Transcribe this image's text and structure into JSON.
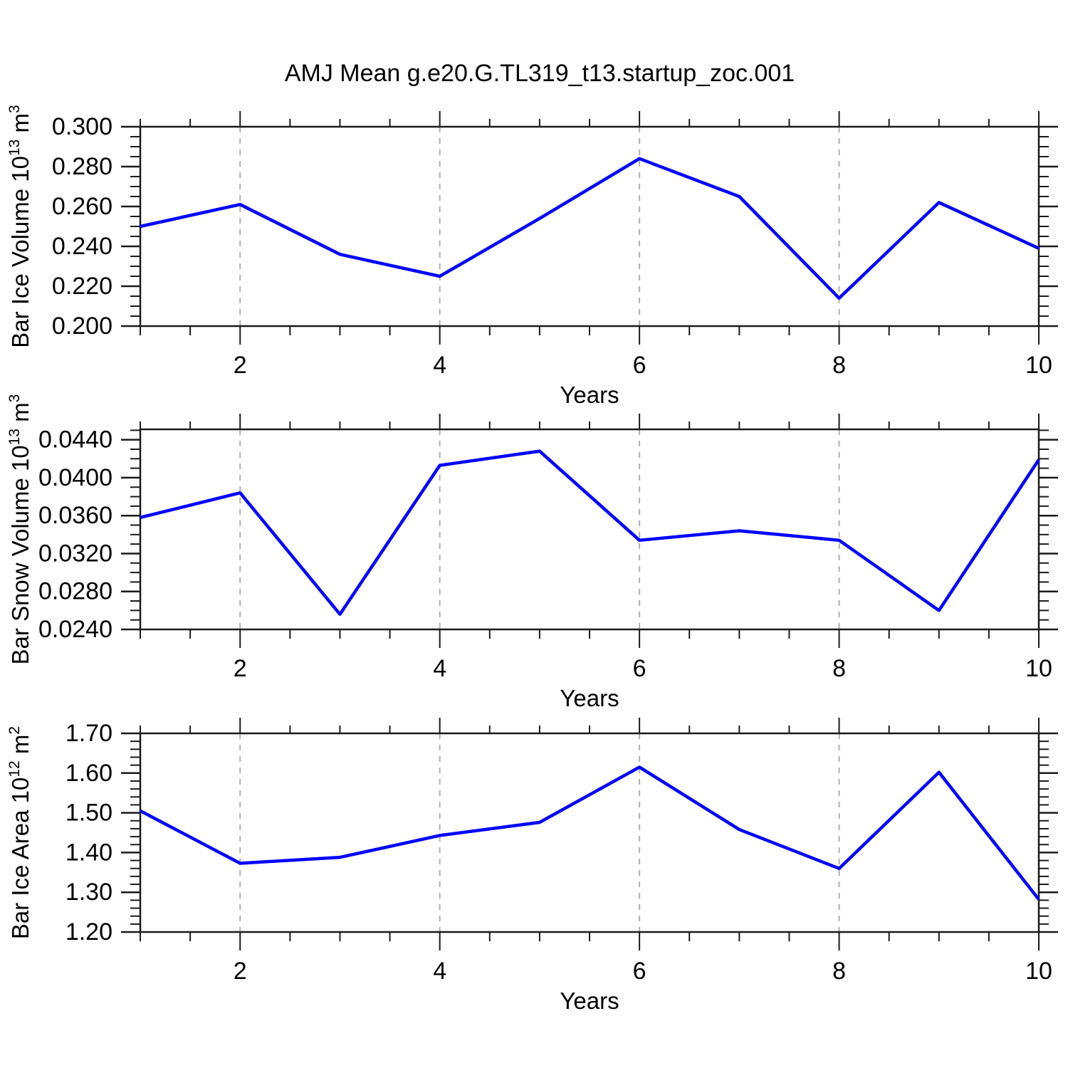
{
  "title": "AMJ Mean g.e20.G.TL319_t13.startup_zoc.001",
  "chart_data": [
    {
      "type": "line",
      "panel": "bar-ice-volume",
      "ylabel": "Bar Ice Volume 10^13 m^3",
      "ylabel_parts": [
        [
          "Bar Ice Volume 10",
          false
        ],
        [
          "13",
          true
        ],
        [
          " m",
          false
        ],
        [
          "3",
          true
        ]
      ],
      "xlabel": "Years",
      "x": [
        1,
        2,
        3,
        4,
        5,
        6,
        7,
        8,
        9,
        10
      ],
      "values": [
        0.25,
        0.261,
        0.236,
        0.225,
        0.254,
        0.284,
        0.265,
        0.214,
        0.262,
        0.239
      ],
      "xlim": [
        1,
        10
      ],
      "ylim": [
        0.2,
        0.3
      ],
      "yticks": [
        0.2,
        0.22,
        0.24,
        0.26,
        0.28,
        0.3
      ],
      "ytick_labels": [
        "0.200",
        "0.220",
        "0.240",
        "0.260",
        "0.280",
        "0.300"
      ],
      "yminor_step": 0.005,
      "xticks": [
        2,
        4,
        6,
        8,
        10
      ],
      "xtick_labels": [
        "2",
        "4",
        "6",
        "8",
        "10"
      ],
      "xminor_step": 0.5,
      "gridlines_x": [
        2,
        4,
        6,
        8
      ],
      "grid_on": true,
      "legend": "none",
      "line_color": "#0000ff",
      "grid_color": "#b0b0b0",
      "axis_color": "#1a1a1a"
    },
    {
      "type": "line",
      "panel": "bar-snow-volume",
      "ylabel": "Bar Snow Volume 10^13 m^3",
      "ylabel_parts": [
        [
          "Bar Snow Volume 10",
          false
        ],
        [
          "13",
          true
        ],
        [
          " m",
          false
        ],
        [
          "3",
          true
        ]
      ],
      "xlabel": "Years",
      "x": [
        1,
        2,
        3,
        4,
        5,
        6,
        7,
        8,
        9,
        10
      ],
      "values": [
        0.0358,
        0.0384,
        0.0256,
        0.0413,
        0.0428,
        0.0334,
        0.0344,
        0.0334,
        0.026,
        0.0419
      ],
      "xlim": [
        1,
        10
      ],
      "ylim": [
        0.024,
        0.0451
      ],
      "yticks": [
        0.024,
        0.028,
        0.032,
        0.036,
        0.04,
        0.044
      ],
      "ytick_labels": [
        "0.0240",
        "0.0280",
        "0.0320",
        "0.0360",
        "0.0400",
        "0.0440"
      ],
      "yminor_step": 0.001,
      "xticks": [
        2,
        4,
        6,
        8,
        10
      ],
      "xtick_labels": [
        "2",
        "4",
        "6",
        "8",
        "10"
      ],
      "xminor_step": 0.5,
      "gridlines_x": [
        2,
        4,
        6,
        8
      ],
      "grid_on": true,
      "legend": "none",
      "line_color": "#0000ff",
      "grid_color": "#b0b0b0",
      "axis_color": "#1a1a1a"
    },
    {
      "type": "line",
      "panel": "bar-ice-area",
      "ylabel": "Bar Ice Area 10^12 m^2",
      "ylabel_parts": [
        [
          "Bar Ice Area 10",
          false
        ],
        [
          "12",
          true
        ],
        [
          " m",
          false
        ],
        [
          "2",
          true
        ]
      ],
      "xlabel": "Years",
      "x": [
        1,
        2,
        3,
        4,
        5,
        6,
        7,
        8,
        9,
        10
      ],
      "values": [
        1.505,
        1.373,
        1.388,
        1.443,
        1.476,
        1.615,
        1.458,
        1.36,
        1.602,
        1.282
      ],
      "xlim": [
        1,
        10
      ],
      "ylim": [
        1.2,
        1.7
      ],
      "yticks": [
        1.2,
        1.3,
        1.4,
        1.5,
        1.6,
        1.7
      ],
      "ytick_labels": [
        "1.20",
        "1.30",
        "1.40",
        "1.50",
        "1.60",
        "1.70"
      ],
      "yminor_step": 0.02,
      "xticks": [
        2,
        4,
        6,
        8,
        10
      ],
      "xtick_labels": [
        "2",
        "4",
        "6",
        "8",
        "10"
      ],
      "xminor_step": 0.5,
      "gridlines_x": [
        2,
        4,
        6,
        8
      ],
      "grid_on": true,
      "legend": "none",
      "line_color": "#0000ff",
      "grid_color": "#b0b0b0",
      "axis_color": "#1a1a1a"
    }
  ]
}
